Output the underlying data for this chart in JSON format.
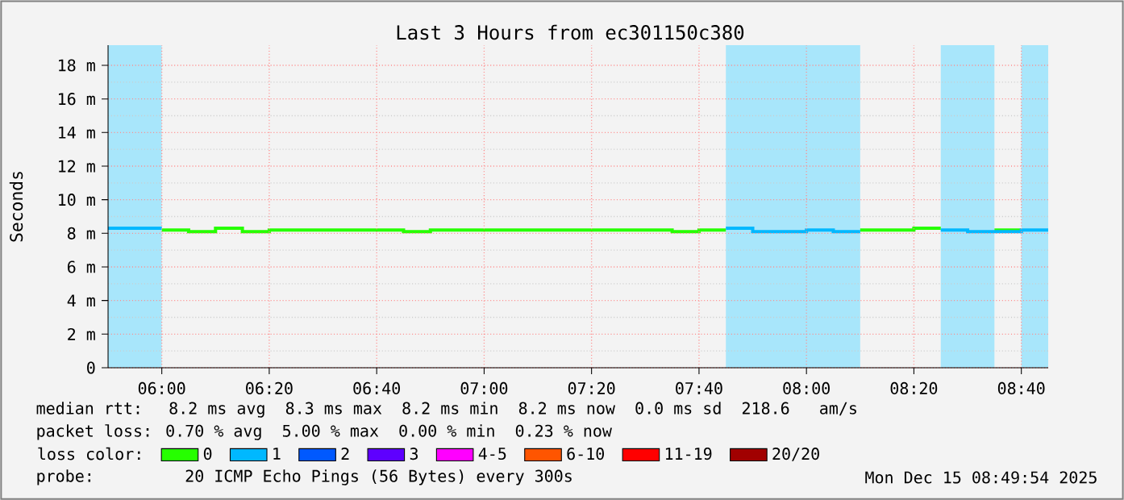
{
  "chart_data": {
    "type": "step",
    "title": "Last 3 Hours from ec301150c380",
    "ylabel": "Seconds",
    "legend_title": "loss color:",
    "x": [
      5.8333,
      5.9167,
      6.0,
      6.0833,
      6.1667,
      6.25,
      6.3333,
      6.4167,
      6.5,
      6.5833,
      6.6667,
      6.75,
      6.8333,
      6.9167,
      7.0,
      7.0833,
      7.1667,
      7.25,
      7.3333,
      7.4167,
      7.5,
      7.5833,
      7.6667,
      7.75,
      7.8333,
      7.9167,
      8.0,
      8.0833,
      8.1667,
      8.25,
      8.3333,
      8.4167,
      8.5,
      8.5833,
      8.6667,
      8.75
    ],
    "series": [
      {
        "name": "0",
        "color": "#26ff00",
        "values": [
          null,
          null,
          8.2,
          8.1,
          8.3,
          8.1,
          8.2,
          8.2,
          8.2,
          8.2,
          8.2,
          8.1,
          8.2,
          8.2,
          8.2,
          8.2,
          8.2,
          8.2,
          8.2,
          8.2,
          8.2,
          8.1,
          8.2,
          8.2,
          null,
          null,
          null,
          null,
          8.2,
          8.2,
          8.3,
          8.3,
          null,
          8.2,
          8.2,
          null
        ]
      },
      {
        "name": "1",
        "color": "#00b8ff",
        "values": [
          8.3,
          8.3,
          8.3,
          null,
          null,
          null,
          null,
          null,
          null,
          null,
          null,
          null,
          null,
          null,
          null,
          null,
          null,
          null,
          null,
          null,
          null,
          null,
          null,
          8.3,
          8.1,
          8.1,
          8.2,
          8.1,
          8.1,
          null,
          null,
          8.2,
          8.1,
          8.1,
          8.2,
          8.2
        ]
      },
      {
        "name": "2",
        "color": "#0059ff",
        "values": [
          null,
          null,
          null,
          null,
          null,
          null,
          null,
          null,
          null,
          null,
          null,
          null,
          null,
          null,
          null,
          null,
          null,
          null,
          null,
          null,
          null,
          null,
          null,
          null,
          null,
          null,
          null,
          null,
          null,
          null,
          null,
          null,
          null,
          null,
          null,
          null
        ]
      },
      {
        "name": "3",
        "color": "#5e00ff",
        "values": [
          null,
          null,
          null,
          null,
          null,
          null,
          null,
          null,
          null,
          null,
          null,
          null,
          null,
          null,
          null,
          null,
          null,
          null,
          null,
          null,
          null,
          null,
          null,
          null,
          null,
          null,
          null,
          null,
          null,
          null,
          null,
          null,
          null,
          null,
          null,
          null
        ]
      },
      {
        "name": "4-5",
        "color": "#ff00ff",
        "values": [
          null,
          null,
          null,
          null,
          null,
          null,
          null,
          null,
          null,
          null,
          null,
          null,
          null,
          null,
          null,
          null,
          null,
          null,
          null,
          null,
          null,
          null,
          null,
          null,
          null,
          null,
          null,
          null,
          null,
          null,
          null,
          null,
          null,
          null,
          null,
          null
        ]
      },
      {
        "name": "6-10",
        "color": "#ff5500",
        "values": [
          null,
          null,
          null,
          null,
          null,
          null,
          null,
          null,
          null,
          null,
          null,
          null,
          null,
          null,
          null,
          null,
          null,
          null,
          null,
          null,
          null,
          null,
          null,
          null,
          null,
          null,
          null,
          null,
          null,
          null,
          null,
          null,
          null,
          null,
          null,
          null
        ]
      },
      {
        "name": "11-19",
        "color": "#ff0000",
        "values": [
          null,
          null,
          null,
          null,
          null,
          null,
          null,
          null,
          null,
          null,
          null,
          null,
          null,
          null,
          null,
          null,
          null,
          null,
          null,
          null,
          null,
          null,
          null,
          null,
          null,
          null,
          null,
          null,
          null,
          null,
          null,
          null,
          null,
          null,
          null,
          null
        ]
      },
      {
        "name": "20/20",
        "color": "#a10000",
        "values": [
          null,
          null,
          null,
          null,
          null,
          null,
          null,
          null,
          null,
          null,
          null,
          null,
          null,
          null,
          null,
          null,
          null,
          null,
          null,
          null,
          null,
          null,
          null,
          null,
          null,
          null,
          null,
          null,
          null,
          null,
          null,
          null,
          null,
          null,
          null,
          null
        ]
      }
    ],
    "bands": [
      {
        "axis": "x",
        "from": 5.8333,
        "to": 6.0,
        "color": "#a8e6fb"
      },
      {
        "axis": "x",
        "from": 7.75,
        "to": 8.1667,
        "color": "#a8e6fb"
      },
      {
        "axis": "x",
        "from": 8.4167,
        "to": 8.5833,
        "color": "#a8e6fb"
      },
      {
        "axis": "x",
        "from": 8.6667,
        "to": 8.75,
        "color": "#a8e6fb"
      }
    ],
    "xlim": [
      5.8333,
      8.75
    ],
    "xticks": [
      {
        "value": 6.0,
        "label": "06:00"
      },
      {
        "value": 6.3333,
        "label": "06:20"
      },
      {
        "value": 6.6667,
        "label": "06:40"
      },
      {
        "value": 7.0,
        "label": "07:00"
      },
      {
        "value": 7.3333,
        "label": "07:20"
      },
      {
        "value": 7.6667,
        "label": "07:40"
      },
      {
        "value": 8.0,
        "label": "08:00"
      },
      {
        "value": 8.3333,
        "label": "08:20"
      },
      {
        "value": 8.6667,
        "label": "08:40"
      }
    ],
    "ylim": [
      0,
      19.2
    ],
    "yticks": [
      0,
      {
        "value": 2,
        "label": "2 m"
      },
      {
        "value": 4,
        "label": "4 m"
      },
      {
        "value": 6,
        "label": "6 m"
      },
      {
        "value": 8,
        "label": "8 m"
      },
      {
        "value": 10,
        "label": "10 m"
      },
      {
        "value": 12,
        "label": "12 m"
      },
      {
        "value": 14,
        "label": "14 m"
      },
      {
        "value": 16,
        "label": "16 m"
      },
      {
        "value": 18,
        "label": "18 m"
      }
    ],
    "grid": true,
    "legend": "bottom",
    "annotations": [
      "median rtt:  8.2 ms avg  8.3 ms max  8.2 ms min  8.2 ms now  0.0 ms sd  218.6   am/s",
      "packet loss: 0.70 % avg  5.00 % max  0.00 % min  0.23 % now",
      "probe:       20 ICMP Echo Pings (56 Bytes) every 300s",
      "Mon Dec 15 08:49:54 2025"
    ]
  }
}
